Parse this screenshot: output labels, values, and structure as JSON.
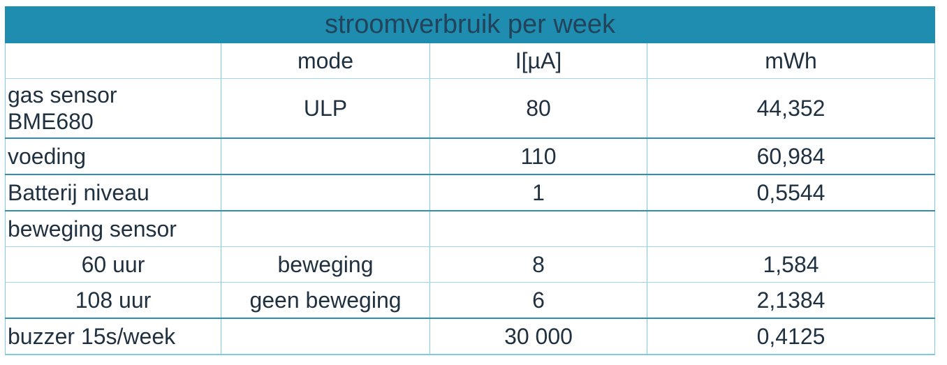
{
  "title": "stroomverbruik per week",
  "columns": [
    "",
    "mode",
    "I[µA]",
    "mWh"
  ],
  "rows": [
    {
      "label": [
        "gas sensor",
        "BME680"
      ],
      "mode": "ULP",
      "current": "80",
      "mwh": "44,352"
    },
    {
      "label": [
        "voeding"
      ],
      "mode": "",
      "current": "110",
      "mwh": "60,984"
    },
    {
      "label": [
        "Batterij niveau"
      ],
      "mode": "",
      "current": "1",
      "mwh": "0,5544"
    },
    {
      "label": [
        "beweging sensor"
      ],
      "mode": "",
      "current": "",
      "mwh": ""
    },
    {
      "label": [
        "60 uur"
      ],
      "mode": "beweging",
      "current": "8",
      "mwh": "1,584"
    },
    {
      "label": [
        "108 uur"
      ],
      "mode": "geen beweging",
      "current": "6",
      "mwh": "2,1384"
    },
    {
      "label": [
        "buzzer 15s/week"
      ],
      "mode": "",
      "current": "30 000",
      "mwh": "0,4125"
    }
  ]
}
